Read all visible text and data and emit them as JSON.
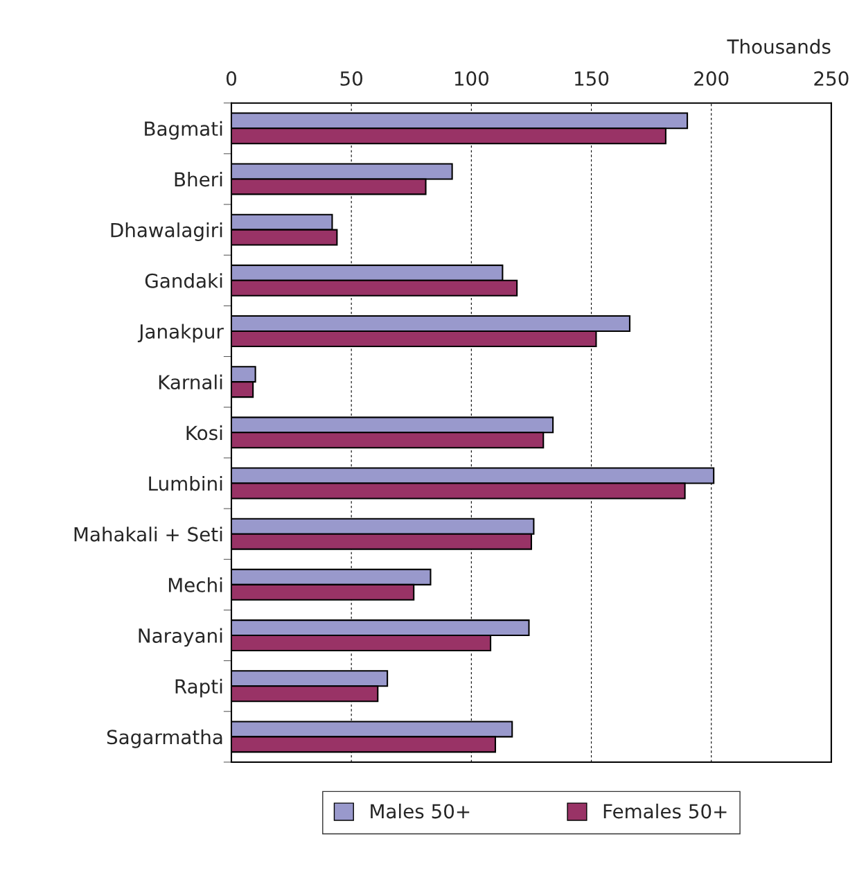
{
  "chart_data": {
    "type": "bar",
    "orientation": "horizontal",
    "xlabel": "Thousands",
    "categories": [
      "Bagmati",
      "Bheri",
      "Dhawalagiri",
      "Gandaki",
      "Janakpur",
      "Karnali",
      "Kosi",
      "Lumbini",
      "Mahakali + Seti",
      "Mechi",
      "Narayani",
      "Rapti",
      "Sagarmatha"
    ],
    "series": [
      {
        "name": "Males 50+",
        "color": "#9999cc",
        "values": [
          190,
          92,
          42,
          113,
          166,
          10,
          134,
          201,
          126,
          83,
          124,
          65,
          117
        ]
      },
      {
        "name": "Females 50+",
        "color": "#993366",
        "values": [
          181,
          81,
          44,
          119,
          152,
          9,
          130,
          189,
          125,
          76,
          108,
          61,
          110
        ]
      }
    ],
    "xlim": [
      0,
      250
    ],
    "xticks": [
      0,
      50,
      100,
      150,
      200,
      250
    ],
    "grid": "x",
    "legend": "bottom"
  }
}
